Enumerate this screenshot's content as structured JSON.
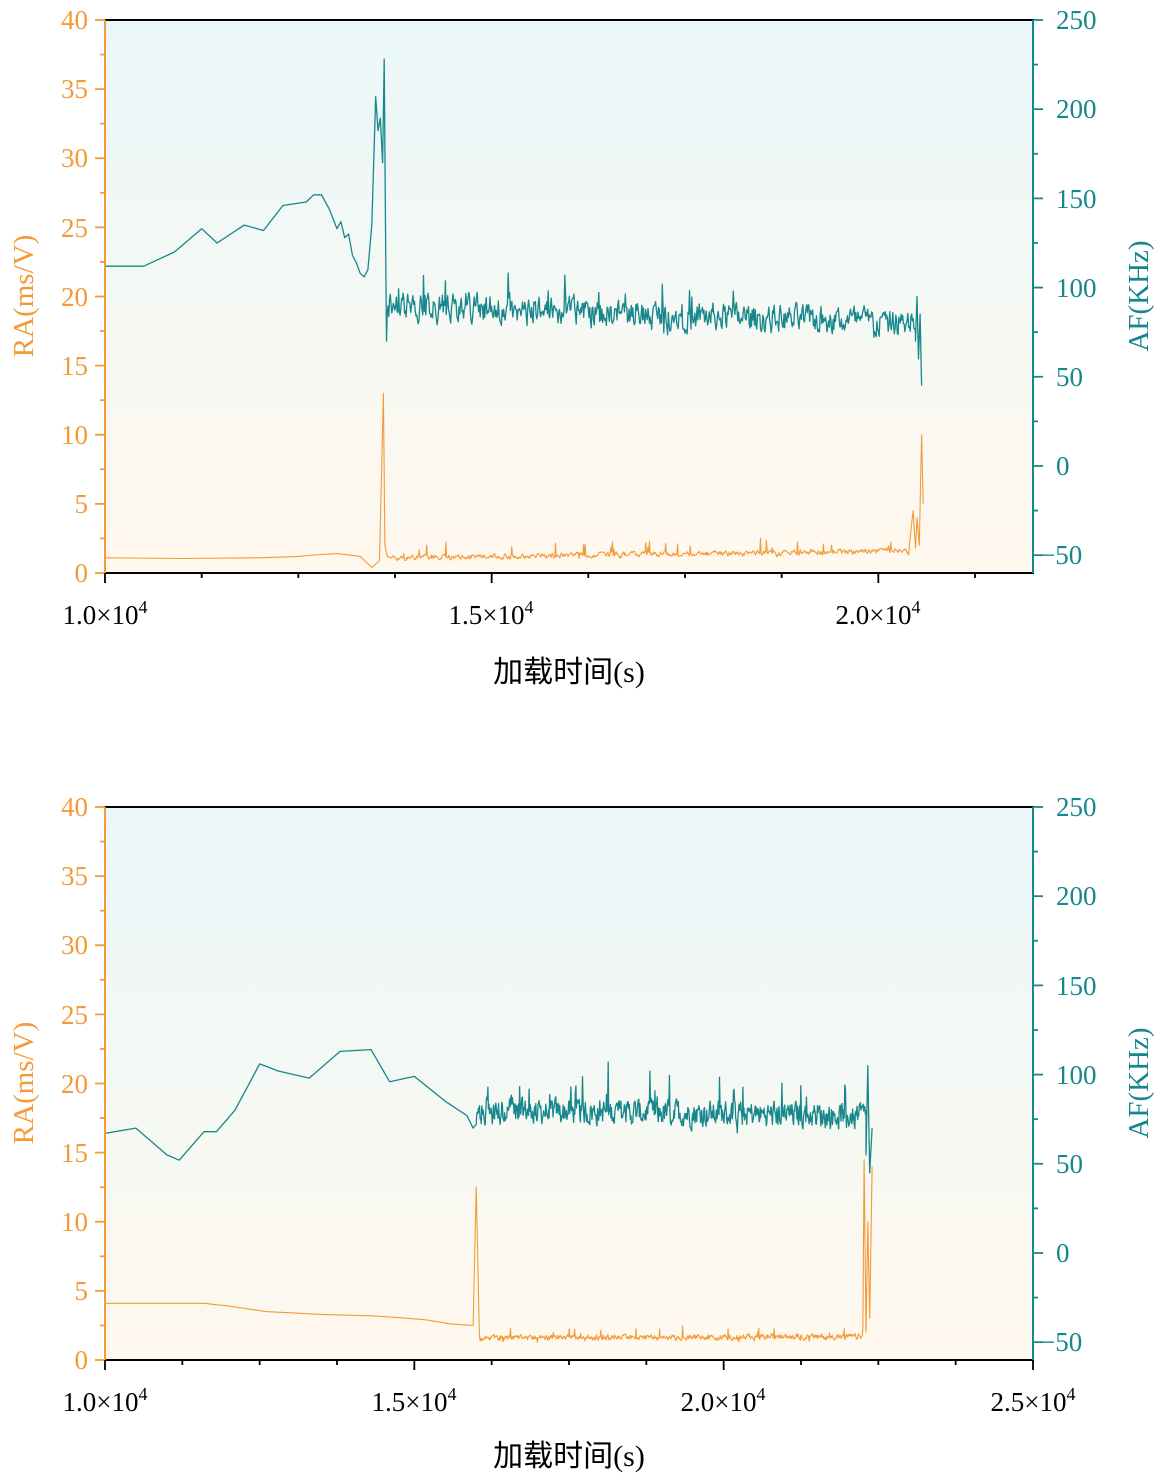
{
  "colors": {
    "ra": "#F29B38",
    "af": "#16878C",
    "bg_top": "#EAF7F9",
    "bg_bottom": "#FFF8EE",
    "axis": "#000000"
  },
  "chart_data": [
    {
      "type": "line",
      "xlabel": "加载时间(s)",
      "ylabel_left": "RA(ms/V)",
      "ylabel_right": "AF(KHz)",
      "xlim": [
        10000,
        22000
      ],
      "ylim_left": [
        0,
        40
      ],
      "ylim_right": [
        -60,
        250
      ],
      "x_ticks": [
        10000,
        15000,
        20000
      ],
      "x_tick_labels": [
        {
          "mant": "1.0×10",
          "exp": "4"
        },
        {
          "mant": "1.5×10",
          "exp": "4"
        },
        {
          "mant": "2.0×10",
          "exp": "4"
        }
      ],
      "y_left_ticks": [
        "0",
        "5",
        "10",
        "15",
        "20",
        "25",
        "30",
        "35",
        "40"
      ],
      "y_right_ticks": [
        "−50",
        "0",
        "50",
        "100",
        "150",
        "200",
        "250"
      ],
      "series": [
        {
          "name": "AF",
          "axis": "right",
          "x": [
            10000,
            10500,
            10900,
            11250,
            11450,
            11800,
            12050,
            12300,
            12600,
            12700,
            12800,
            12900,
            13000,
            13050,
            13100,
            13150,
            13200,
            13250,
            13300,
            13350,
            13400,
            13450,
            13500,
            13530,
            13560,
            13590,
            13610,
            13630,
            13640
          ],
          "y": [
            112,
            112,
            120,
            133,
            125,
            135,
            132,
            146,
            148,
            152,
            152,
            144,
            133,
            137,
            128,
            130,
            118,
            114,
            108,
            106,
            110,
            135,
            207,
            188,
            195,
            170,
            228,
            120,
            70
          ],
          "noise": {
            "start": 13640,
            "end": 20480,
            "base_start": 90,
            "base_end": 80,
            "amp": 12,
            "spike": 18,
            "seed": 11
          },
          "tail": {
            "x": [
              20480,
              20500,
              20520,
              20540,
              20560
            ],
            "y": [
              70,
              95,
              60,
              85,
              45
            ]
          }
        },
        {
          "name": "RA",
          "axis": "left",
          "x": [
            10000,
            11000,
            12000,
            12500,
            12700,
            13000,
            13300,
            13450,
            13550,
            13600,
            13620,
            13650,
            13700
          ],
          "y": [
            1.1,
            1.05,
            1.1,
            1.2,
            1.3,
            1.4,
            1.2,
            0.4,
            0.9,
            13,
            2.0,
            1.2,
            1.1
          ],
          "noise": {
            "start": 13700,
            "end": 20400,
            "base_start": 1.1,
            "base_end": 1.6,
            "amp": 0.3,
            "spike": 0.9,
            "seed": 5
          },
          "tail": {
            "x": [
              20400,
              20450,
              20480,
              20500,
              20530,
              20560,
              20580
            ],
            "y": [
              2,
              4.5,
              1.8,
              4,
              2,
              10,
              5
            ]
          }
        }
      ]
    },
    {
      "type": "line",
      "xlabel": "加载时间(s)",
      "ylabel_left": "RA(ms/V)",
      "ylabel_right": "AF(KHz)",
      "xlim": [
        10000,
        25000
      ],
      "ylim_left": [
        0,
        40
      ],
      "ylim_right": [
        -60,
        250
      ],
      "x_ticks": [
        10000,
        15000,
        20000,
        25000
      ],
      "x_tick_labels": [
        {
          "mant": "1.0×10",
          "exp": "4"
        },
        {
          "mant": "1.5×10",
          "exp": "4"
        },
        {
          "mant": "2.0×10",
          "exp": "4"
        },
        {
          "mant": "2.5×10",
          "exp": "4"
        }
      ],
      "y_left_ticks": [
        "0",
        "5",
        "10",
        "15",
        "20",
        "25",
        "30",
        "35",
        "40"
      ],
      "y_right_ticks": [
        "−50",
        "0",
        "50",
        "100",
        "150",
        "200",
        "250"
      ],
      "series": [
        {
          "name": "AF",
          "axis": "right",
          "x": [
            10000,
            10500,
            11000,
            11200,
            11600,
            11800,
            12100,
            12500,
            12800,
            13300,
            13800,
            14300,
            14600,
            15000,
            15500,
            15850,
            15950,
            16000
          ],
          "y": [
            67,
            70,
            55,
            52,
            68,
            68,
            80,
            106,
            102,
            98,
            113,
            114,
            96,
            99,
            85,
            77,
            70,
            72
          ],
          "noise": {
            "start": 16000,
            "end": 22300,
            "base_start": 80,
            "base_end": 77,
            "amp": 11,
            "spike": 20,
            "seed": 23
          },
          "tail": {
            "x": [
              22300,
              22330,
              22360,
              22400
            ],
            "y": [
              55,
              105,
              45,
              70
            ]
          }
        },
        {
          "name": "RA",
          "axis": "left",
          "x": [
            10000,
            11000,
            11600,
            12000,
            12600,
            13500,
            14300,
            14800,
            15200,
            15600,
            15950,
            16000,
            16050
          ],
          "y": [
            4.1,
            4.1,
            4.1,
            3.9,
            3.5,
            3.3,
            3.2,
            3.05,
            2.9,
            2.6,
            2.5,
            12.5,
            2.0
          ],
          "noise": {
            "start": 16050,
            "end": 22250,
            "base_start": 1.6,
            "base_end": 1.7,
            "amp": 0.3,
            "spike": 0.7,
            "seed": 7
          },
          "tail": {
            "x": [
              22250,
              22270,
              22300,
              22330,
              22360,
              22400
            ],
            "y": [
              2.5,
              14.5,
              2.0,
              10,
              3,
              14
            ]
          }
        }
      ]
    }
  ]
}
